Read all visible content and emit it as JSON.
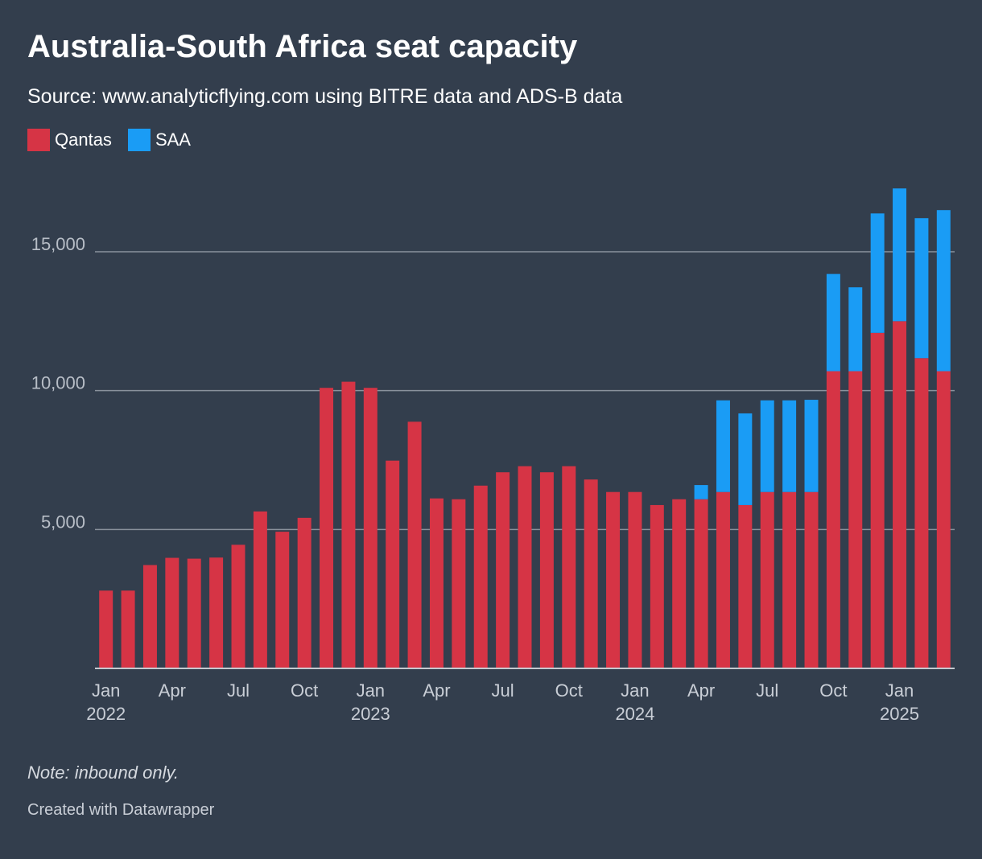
{
  "chart_data": {
    "type": "bar",
    "stacked": true,
    "title": "Australia-South Africa seat capacity",
    "subtitle": "Source: www.analyticflying.com using BITRE data and ADS-B data",
    "note": "Note: inbound only.",
    "credit": "Created with Datawrapper",
    "categories": [
      "Jan 2022",
      "Feb 2022",
      "Mar 2022",
      "Apr 2022",
      "May 2022",
      "Jun 2022",
      "Jul 2022",
      "Aug 2022",
      "Sep 2022",
      "Oct 2022",
      "Nov 2022",
      "Dec 2022",
      "Jan 2023",
      "Feb 2023",
      "Mar 2023",
      "Apr 2023",
      "May 2023",
      "Jun 2023",
      "Jul 2023",
      "Aug 2023",
      "Sep 2023",
      "Oct 2023",
      "Nov 2023",
      "Dec 2023",
      "Jan 2024",
      "Feb 2024",
      "Mar 2024",
      "Apr 2024",
      "May 2024",
      "Jun 2024",
      "Jul 2024",
      "Aug 2024",
      "Sep 2024",
      "Oct 2024",
      "Nov 2024",
      "Dec 2024",
      "Jan 2025",
      "Feb 2025",
      "Mar 2025"
    ],
    "series": [
      {
        "name": "Qantas",
        "color": "#d63445",
        "values": [
          2800,
          2800,
          3720,
          3980,
          3950,
          3990,
          4450,
          5650,
          4920,
          5420,
          10100,
          10320,
          10100,
          7480,
          8880,
          6120,
          6090,
          6580,
          7060,
          7280,
          7060,
          7280,
          6800,
          6350,
          6350,
          5880,
          6090,
          6090,
          6350,
          5880,
          6350,
          6350,
          6350,
          10700,
          10700,
          12080,
          12500,
          11170,
          10700
        ]
      },
      {
        "name": "SAA",
        "color": "#1a9cf5",
        "values": [
          0,
          0,
          0,
          0,
          0,
          0,
          0,
          0,
          0,
          0,
          0,
          0,
          0,
          0,
          0,
          0,
          0,
          0,
          0,
          0,
          0,
          0,
          0,
          0,
          0,
          0,
          0,
          510,
          3300,
          3300,
          3300,
          3300,
          3320,
          3500,
          3020,
          4300,
          4780,
          5040,
          5800
        ]
      }
    ],
    "ylim": [
      0,
      17500
    ],
    "yticks": [
      5000,
      10000,
      15000
    ],
    "ytick_labels": [
      "5,000",
      "10,000",
      "15,000"
    ],
    "xtick_labels": [
      {
        "index": 0,
        "month": "Jan",
        "year": "2022"
      },
      {
        "index": 3,
        "month": "Apr",
        "year": ""
      },
      {
        "index": 6,
        "month": "Jul",
        "year": ""
      },
      {
        "index": 9,
        "month": "Oct",
        "year": ""
      },
      {
        "index": 12,
        "month": "Jan",
        "year": "2023"
      },
      {
        "index": 15,
        "month": "Apr",
        "year": ""
      },
      {
        "index": 18,
        "month": "Jul",
        "year": ""
      },
      {
        "index": 21,
        "month": "Oct",
        "year": ""
      },
      {
        "index": 24,
        "month": "Jan",
        "year": "2024"
      },
      {
        "index": 27,
        "month": "Apr",
        "year": ""
      },
      {
        "index": 30,
        "month": "Jul",
        "year": ""
      },
      {
        "index": 33,
        "month": "Oct",
        "year": ""
      },
      {
        "index": 36,
        "month": "Jan",
        "year": "2025"
      }
    ],
    "grid": true,
    "legend_position": "top-left"
  },
  "legend": [
    {
      "label": "Qantas",
      "color": "#d63445"
    },
    {
      "label": "SAA",
      "color": "#1a9cf5"
    }
  ]
}
